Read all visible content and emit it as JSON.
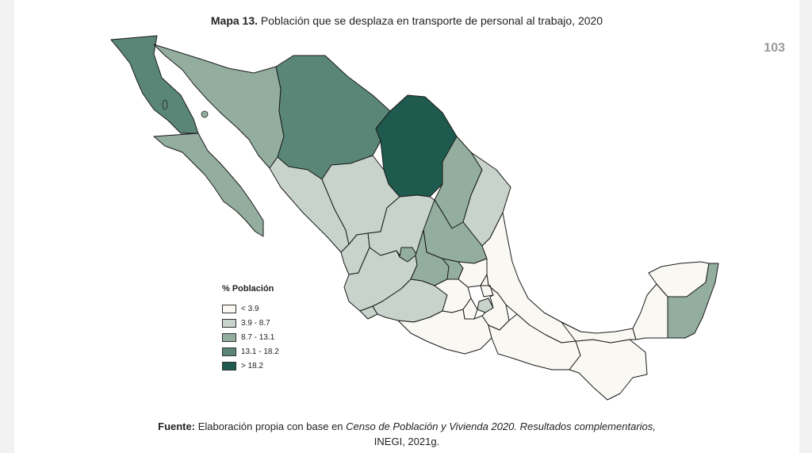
{
  "title": {
    "bold": "Mapa 13.",
    "rest": " Población que se desplaza en transporte de personal al trabajo, 2020"
  },
  "page_number": "103",
  "legend": {
    "title": "% Población",
    "items": [
      {
        "label": "< 3.9",
        "color": "#faf8f2"
      },
      {
        "label": "3.9 - 8.7",
        "color": "#c7d3cb"
      },
      {
        "label": "8.7 - 13.1",
        "color": "#93ae9f"
      },
      {
        "label": "13.1 - 18.2",
        "color": "#5a8678"
      },
      {
        "label": "> 18.2",
        "color": "#1f5a4e"
      }
    ]
  },
  "regions": [
    {
      "name": "Baja California",
      "class": 3
    },
    {
      "name": "Baja California Sur",
      "class": 2
    },
    {
      "name": "Sonora",
      "class": 2
    },
    {
      "name": "Chihuahua",
      "class": 3
    },
    {
      "name": "Coahuila",
      "class": 4
    },
    {
      "name": "Nuevo León",
      "class": 2
    },
    {
      "name": "Tamaulipas",
      "class": 1
    },
    {
      "name": "Sinaloa",
      "class": 1
    },
    {
      "name": "Durango",
      "class": 1
    },
    {
      "name": "Zacatecas",
      "class": 1
    },
    {
      "name": "San Luis Potosí",
      "class": 2
    },
    {
      "name": "Nayarit",
      "class": 1
    },
    {
      "name": "Aguascalientes",
      "class": 2
    },
    {
      "name": "Jalisco",
      "class": 1
    },
    {
      "name": "Guanajuato",
      "class": 2
    },
    {
      "name": "Querétaro",
      "class": 2
    },
    {
      "name": "Hidalgo",
      "class": 0
    },
    {
      "name": "Veracruz",
      "class": 0
    },
    {
      "name": "Colima",
      "class": 1
    },
    {
      "name": "Michoacán",
      "class": 1
    },
    {
      "name": "Estado de México",
      "class": 0
    },
    {
      "name": "Ciudad de México",
      "class": 1
    },
    {
      "name": "Tlaxcala",
      "class": 0
    },
    {
      "name": "Puebla",
      "class": 0
    },
    {
      "name": "Morelos",
      "class": 0
    },
    {
      "name": "Guerrero",
      "class": 0
    },
    {
      "name": "Oaxaca",
      "class": 0
    },
    {
      "name": "Chiapas",
      "class": 0
    },
    {
      "name": "Tabasco",
      "class": 0
    },
    {
      "name": "Campeche",
      "class": 0
    },
    {
      "name": "Yucatán",
      "class": 0
    },
    {
      "name": "Quintana Roo",
      "class": 2
    }
  ],
  "source": {
    "bold": "Fuente:",
    "text1": " Elaboración propia con base en ",
    "italic": "Censo de Población y Vivienda 2020. Resultados complementarios,",
    "line2": "INEGI, 2021g."
  }
}
